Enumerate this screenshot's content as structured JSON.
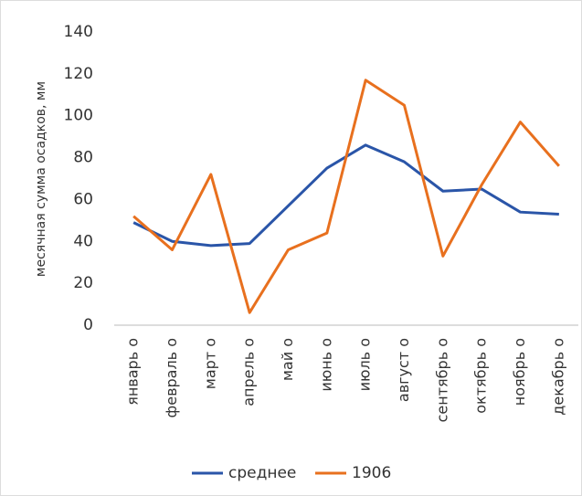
{
  "chart_data": {
    "type": "line",
    "y_label": "месячная сумма осадков, мм",
    "categories": [
      "январь о",
      "февраль о",
      "март о",
      "апрель о",
      "май о",
      "июнь о",
      "июль о",
      "август о",
      "сентябрь о",
      "октябрь о",
      "ноябрь о",
      "декабрь о"
    ],
    "series": [
      {
        "name": "среднее",
        "color": "#2a55a8",
        "values": [
          49,
          40,
          38,
          39,
          57,
          75,
          86,
          78,
          64,
          65,
          54,
          53
        ]
      },
      {
        "name": "1906",
        "color": "#e8701e",
        "values": [
          52,
          36,
          72,
          6,
          36,
          44,
          117,
          105,
          33,
          67,
          97,
          76
        ]
      }
    ],
    "ylim": [
      0,
      140
    ],
    "yticks": [
      0,
      20,
      40,
      60,
      80,
      100,
      120,
      140
    ],
    "grid": false,
    "legend": "bottom"
  }
}
